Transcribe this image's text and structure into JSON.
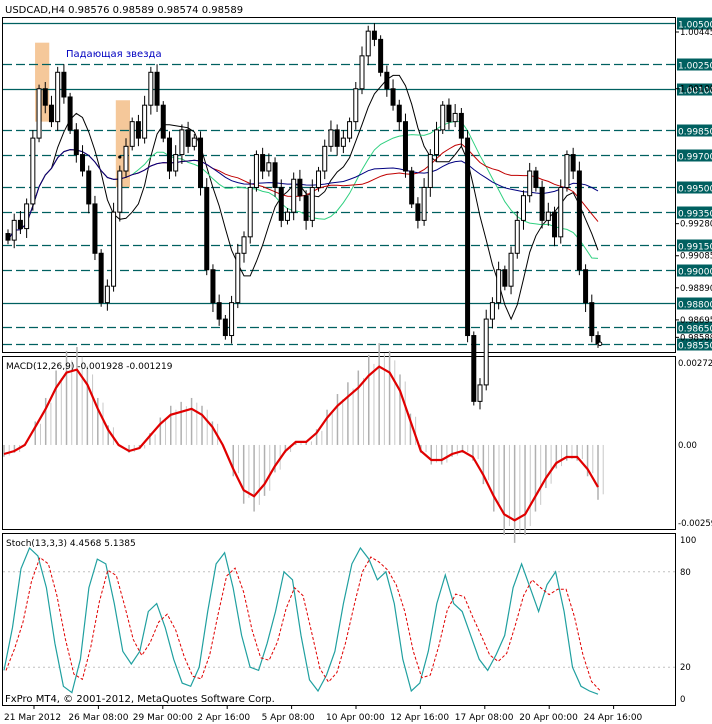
{
  "header": {
    "symbol_line": "USDCAD,H4  0.98576 0.98589 0.98574 0.98589"
  },
  "annotation": {
    "pattern_label": "Падающая звезда"
  },
  "macd": {
    "label": "MACD(12,26,9) -0.001928 -0.001219",
    "ticks": [
      "0.00272",
      "0.00",
      "-0.00259"
    ],
    "line_color": "#e00000"
  },
  "stoch": {
    "label": "Stoch(13,3,3) 4.4568 5.1385",
    "ticks": [
      "100",
      "80",
      "20",
      "0"
    ],
    "main_color": "#20a0a0",
    "signal_color": "#e00000"
  },
  "copyright": "FxPro MT4, © 2001-2012, MetaQuotes Software Corp.",
  "x_labels": [
    "21 Mar 2012",
    "26 Mar 08:00",
    "29 Mar 00:00",
    "2 Apr 16:00",
    "5 Apr 08:00",
    "10 Apr 00:00",
    "12 Apr 16:00",
    "17 Apr 08:00",
    "20 Apr 00:00",
    "24 Apr 16:00"
  ],
  "colors": {
    "highlight": "#f5c89a",
    "level_line": "#006060",
    "ma_black": "#000000",
    "ma_red": "#c00000",
    "ma_navy": "#000080",
    "ma_green": "#30d080",
    "text_blue": "#0000c0"
  },
  "chart_data": {
    "type": "candlestick",
    "y_range": [
      0.985,
      1.0053
    ],
    "price_ticks": [
      "1.00445",
      "1.00100",
      "0.99280",
      "0.99085",
      "0.98890",
      "0.98695",
      "0.98589"
    ],
    "levels": [
      {
        "label": "1.00500",
        "price": 1.005,
        "style": "solid"
      },
      {
        "label": "1.00250",
        "price": 1.0025,
        "style": "dashed"
      },
      {
        "label": "1.00100",
        "price": 1.001,
        "style": "solid"
      },
      {
        "label": "0.99850",
        "price": 0.9985,
        "style": "dashed"
      },
      {
        "label": "0.99700",
        "price": 0.997,
        "style": "dashed"
      },
      {
        "label": "0.99500",
        "price": 0.995,
        "style": "dashed"
      },
      {
        "label": "0.99350",
        "price": 0.9935,
        "style": "dashed"
      },
      {
        "label": "0.99150",
        "price": 0.9915,
        "style": "dashed"
      },
      {
        "label": "0.99000",
        "price": 0.99,
        "style": "dashed"
      },
      {
        "label": "0.98800",
        "price": 0.988,
        "style": "solid"
      },
      {
        "label": "0.98650",
        "price": 0.9865,
        "style": "dashed"
      },
      {
        "label": "0.98550",
        "price": 0.9855,
        "style": "dashed"
      }
    ],
    "close": [
      0.9918,
      0.993,
      0.9925,
      0.994,
      0.998,
      1.001,
      1.0,
      0.999,
      1.002,
      1.0005,
      0.9985,
      0.997,
      0.996,
      0.994,
      0.991,
      0.988,
      0.989,
      0.9935,
      0.996,
      0.9975,
      0.999,
      0.998,
      1.0,
      1.002,
      1.0,
      0.998,
      0.996,
      0.997,
      0.9985,
      0.9975,
      0.998,
      0.995,
      0.99,
      0.988,
      0.987,
      0.986,
      0.988,
      0.991,
      0.992,
      0.995,
      0.997,
      0.996,
      0.9965,
      0.995,
      0.993,
      0.9935,
      0.9955,
      0.9945,
      0.993,
      0.995,
      0.996,
      0.9975,
      0.9985,
      0.9975,
      0.998,
      0.999,
      1.001,
      1.003,
      1.0045,
      1.004,
      1.002,
      1.001,
      1.0,
      0.999,
      0.996,
      0.994,
      0.993,
      0.995,
      0.997,
      0.9985,
      1.0,
      0.999,
      0.9995,
      0.998,
      0.986,
      0.982,
      0.983,
      0.987,
      0.988,
      0.99,
      0.989,
      0.991,
      0.993,
      0.9945,
      0.996,
      0.995,
      0.993,
      0.9935,
      0.992,
      0.995,
      0.997,
      0.996,
      0.99,
      0.988,
      0.986,
      0.9855
    ],
    "fractal_up_markers": [
      6,
      18
    ],
    "highlight_bars": [
      [
        5,
        6
      ],
      [
        18,
        19
      ]
    ],
    "ma_series_names": [
      "ma_black",
      "ma_red",
      "ma_navy",
      "ma_green"
    ],
    "macd": {
      "range": [
        -0.00259,
        0.00272
      ],
      "signal_line": [
        -0.0003,
        -0.0002,
        0.0,
        0.0006,
        0.0012,
        0.0019,
        0.0024,
        0.0025,
        0.002,
        0.0012,
        0.0005,
        0.0,
        -0.0002,
        -0.0001,
        0.0003,
        0.0007,
        0.001,
        0.0011,
        0.0012,
        0.001,
        0.0006,
        0.0,
        -0.0008,
        -0.0015,
        -0.0017,
        -0.0013,
        -0.0007,
        -0.0002,
        0.0001,
        0.0001,
        0.0004,
        0.0009,
        0.0013,
        0.0016,
        0.0019,
        0.0023,
        0.0026,
        0.0024,
        0.0018,
        0.0008,
        -0.0002,
        -0.0005,
        -0.0005,
        -0.0003,
        -0.0002,
        -0.0004,
        -0.001,
        -0.0017,
        -0.0023,
        -0.0025,
        -0.0023,
        -0.0017,
        -0.0011,
        -0.0006,
        -0.0004,
        -0.0004,
        -0.0008,
        -0.0014
      ]
    },
    "stoch": {
      "range": [
        0,
        100
      ],
      "main": [
        18,
        45,
        82,
        95,
        90,
        70,
        35,
        8,
        4,
        25,
        70,
        88,
        85,
        60,
        30,
        22,
        30,
        55,
        60,
        45,
        25,
        10,
        8,
        20,
        55,
        85,
        92,
        70,
        40,
        20,
        18,
        35,
        55,
        80,
        75,
        40,
        12,
        5,
        15,
        30,
        60,
        85,
        95,
        88,
        75,
        80,
        60,
        25,
        5,
        10,
        30,
        60,
        78,
        60,
        55,
        40,
        25,
        18,
        28,
        40,
        70,
        85,
        70,
        55,
        72,
        80,
        55,
        20,
        8,
        5,
        3
      ]
    }
  }
}
